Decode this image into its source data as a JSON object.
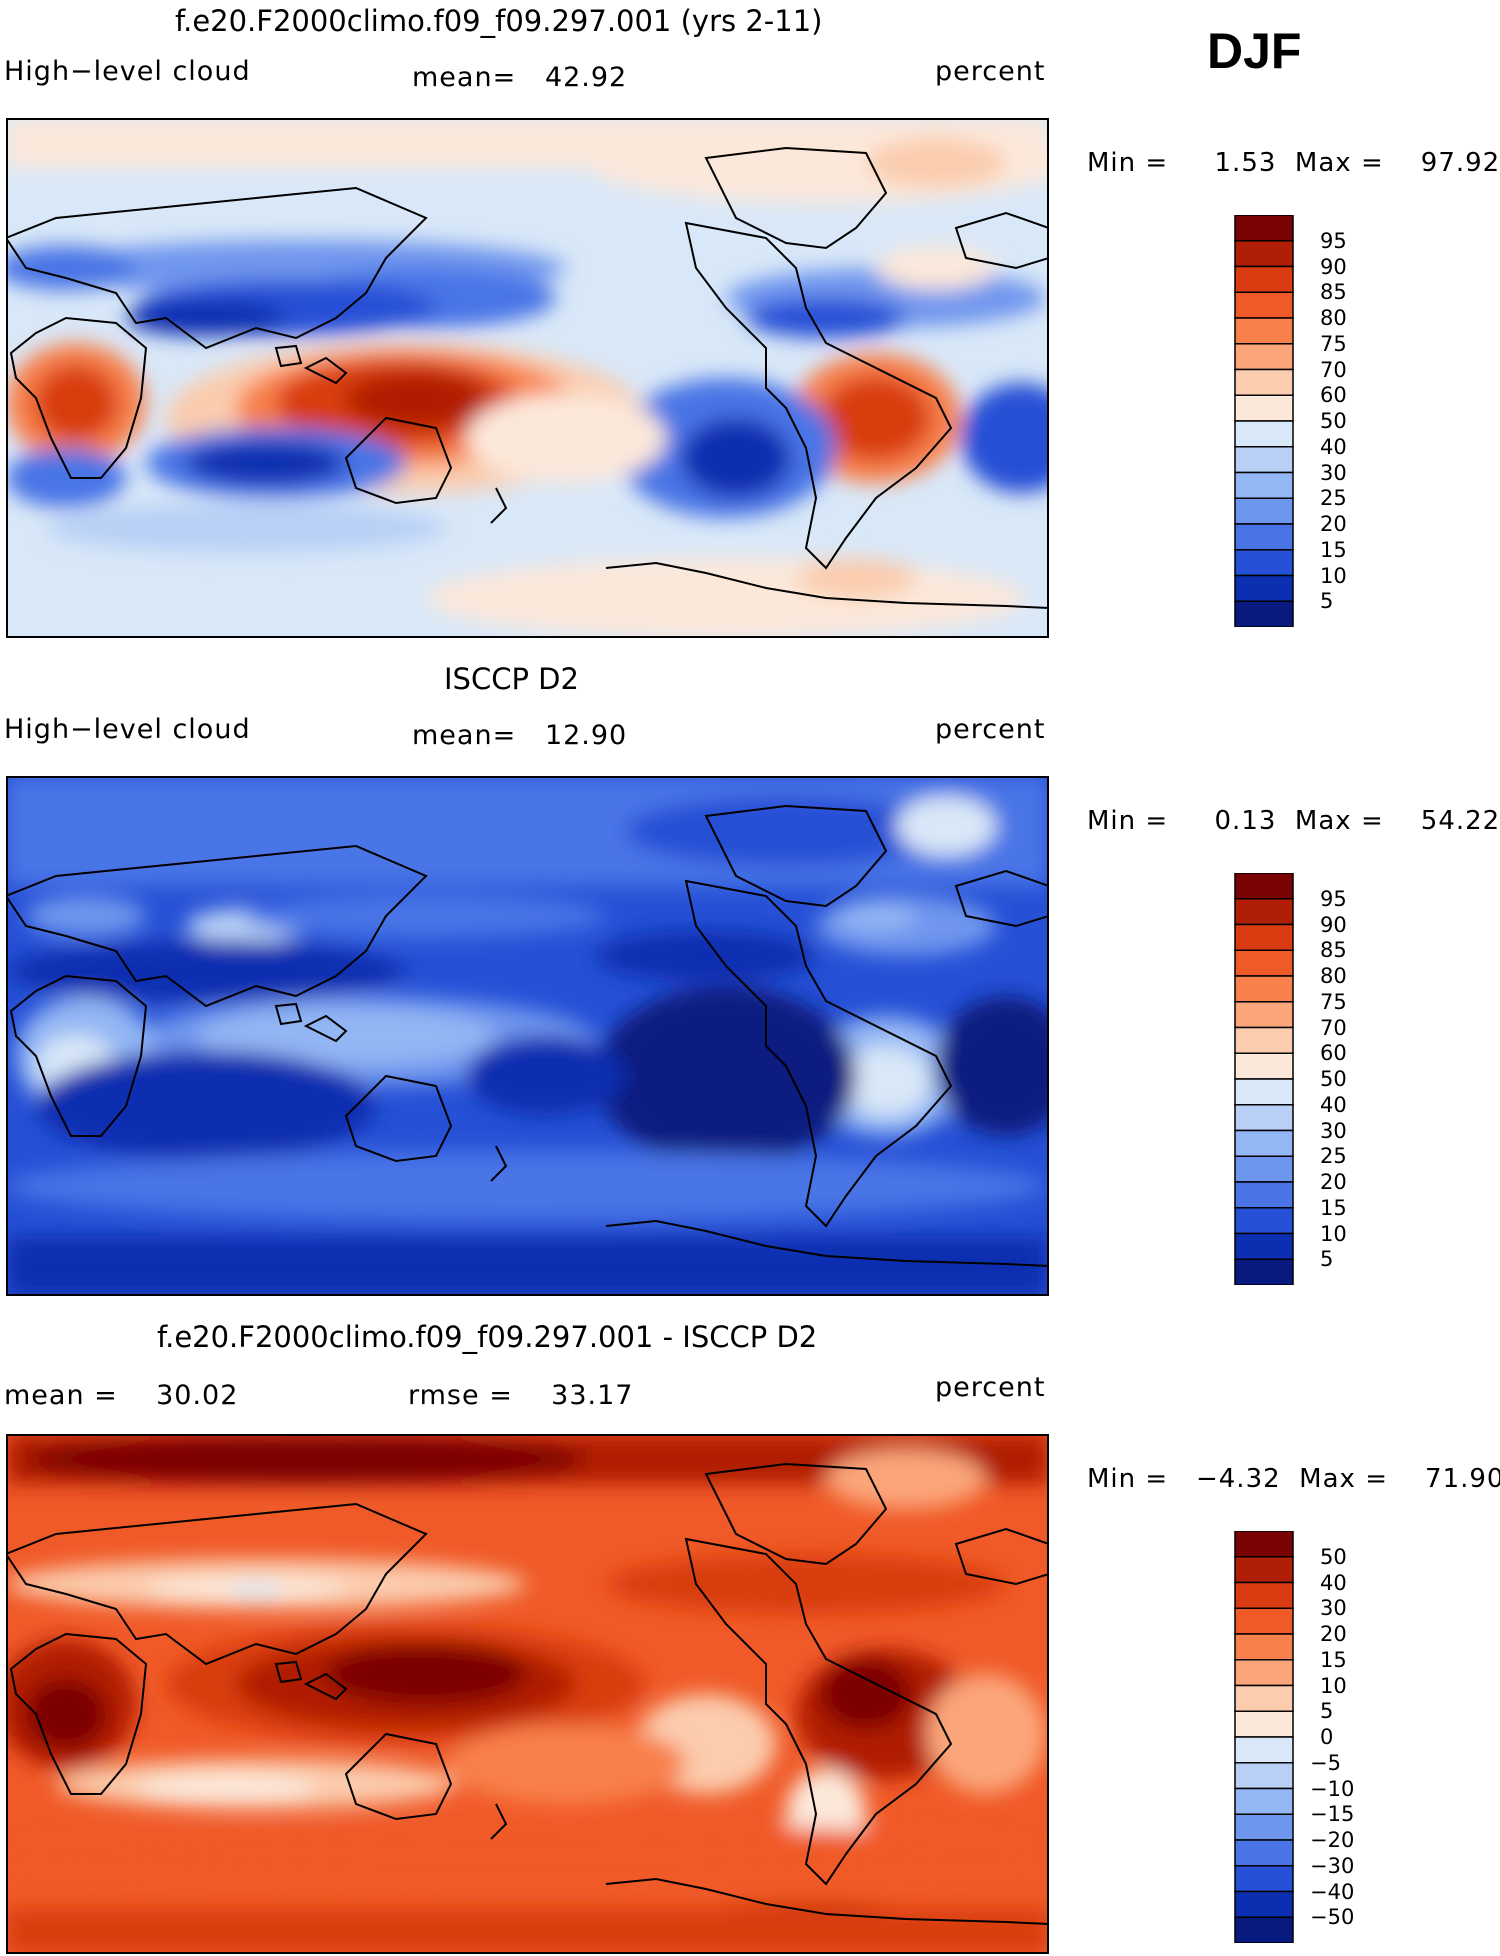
{
  "season": "DJF",
  "panels": [
    {
      "title": "f.e20.F2000climo.f09_f09.297.001 (yrs 2-11)",
      "left_label": "High−level cloud",
      "center_label": "mean=   42.92",
      "right_label": "percent",
      "minmax": "Min =     1.53  Max =    97.92",
      "colorbar": {
        "labels": [
          "95",
          "90",
          "85",
          "80",
          "75",
          "70",
          "60",
          "50",
          "40",
          "30",
          "25",
          "20",
          "15",
          "10",
          "5"
        ],
        "colors": [
          "#7a0403",
          "#b01e05",
          "#d83c10",
          "#f05a28",
          "#f8804c",
          "#fba67a",
          "#fbccad",
          "#fce8da",
          "#d9e8f8",
          "#b8d0f6",
          "#93b6f4",
          "#6f96ee",
          "#4a74e6",
          "#2650d6",
          "#0b2fb0",
          "#071a80"
        ]
      },
      "map_theme": "model"
    },
    {
      "title": "ISCCP D2",
      "left_label": "High−level cloud",
      "center_label": "mean=   12.90",
      "right_label": "percent",
      "minmax": "Min =     0.13  Max =    54.22",
      "colorbar": {
        "labels": [
          "95",
          "90",
          "85",
          "80",
          "75",
          "70",
          "60",
          "50",
          "40",
          "30",
          "25",
          "20",
          "15",
          "10",
          "5"
        ],
        "colors": [
          "#7a0403",
          "#b01e05",
          "#d83c10",
          "#f05a28",
          "#f8804c",
          "#fba67a",
          "#fbccad",
          "#fce8da",
          "#d9e8f8",
          "#b8d0f6",
          "#93b6f4",
          "#6f96ee",
          "#4a74e6",
          "#2650d6",
          "#0b2fb0",
          "#071a80"
        ]
      },
      "map_theme": "obs"
    },
    {
      "title": "f.e20.F2000climo.f09_f09.297.001 - ISCCP D2",
      "left_label": "mean =    30.02",
      "center_label": "rmse =    33.17",
      "right_label": "percent",
      "minmax": "Min =   −4.32  Max =    71.90",
      "colorbar": {
        "labels": [
          "50",
          "40",
          "30",
          "20",
          "15",
          "10",
          "5",
          "0",
          "−5",
          "−10",
          "−15",
          "−20",
          "−30",
          "−40",
          "−50"
        ],
        "colors": [
          "#7a0403",
          "#b01e05",
          "#d83c10",
          "#f05a28",
          "#f8804c",
          "#fba67a",
          "#fbccad",
          "#fce8da",
          "#d9e8f8",
          "#b8d0f6",
          "#93b6f4",
          "#6f96ee",
          "#4a74e6",
          "#2650d6",
          "#0b2fb0",
          "#071a80"
        ]
      },
      "map_theme": "diff"
    }
  ]
}
